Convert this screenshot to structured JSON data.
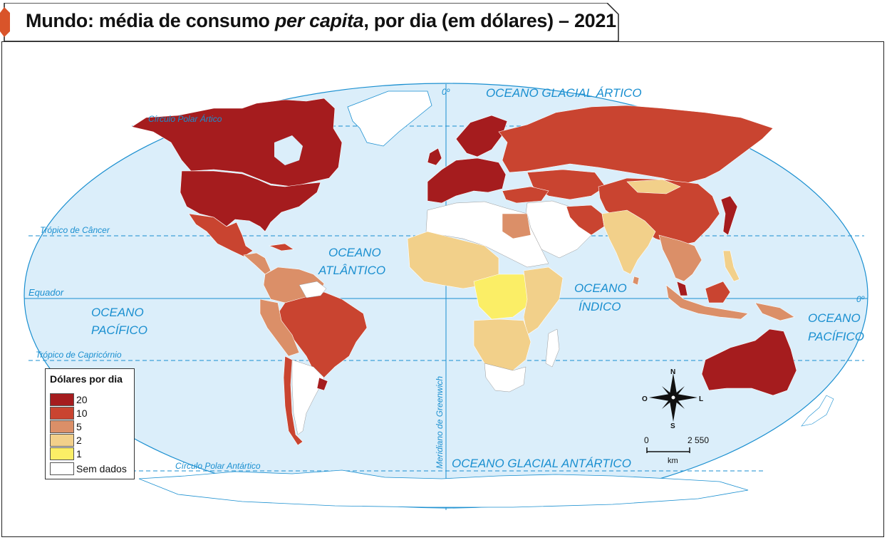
{
  "title": {
    "prefix": "Mundo: média de consumo ",
    "italic": "per capita",
    "suffix": ", por dia (em dólares) – 2021"
  },
  "colors": {
    "ocean": "#dbeefa",
    "line": "#1a8fd0",
    "accent": "#d9542a",
    "level_20": "#a51c1e",
    "level_10": "#c94430",
    "level_5": "#db8f68",
    "level_2": "#f2d08a",
    "level_1": "#fbee66",
    "no_data": "#ffffff"
  },
  "ocean_labels": {
    "arctic": "OCEANO GLACIAL ÁRTICO",
    "atlantic_1": "OCEANO",
    "atlantic_2": "ATLÂNTICO",
    "pacific_w_1": "OCEANO",
    "pacific_w_2": "PACÍFICO",
    "indian_1": "OCEANO",
    "indian_2": "ÍNDICO",
    "pacific_e_1": "OCEANO",
    "pacific_e_2": "PACÍFICO",
    "antarctic": "OCEANO GLACIAL ANTÁRTICO"
  },
  "line_labels": {
    "arctic_circle": "Círculo Polar Ártico",
    "cancer": "Trópico de Câncer",
    "equator": "Equador",
    "capricorn": "Trópico de Capricórnio",
    "antarctic_circle": "Círculo Polar Antártico",
    "greenwich": "Meridiano de Greenwich",
    "zero_top": "0º",
    "zero_right": "0º"
  },
  "legend": {
    "title": "Dólares por dia",
    "items": [
      {
        "label": "20",
        "level": "level_20"
      },
      {
        "label": "10",
        "level": "level_10"
      },
      {
        "label": "5",
        "level": "level_5"
      },
      {
        "label": "2",
        "level": "level_2"
      },
      {
        "label": "1",
        "level": "level_1"
      },
      {
        "label": "Sem dados",
        "level": "no_data"
      }
    ]
  },
  "compass": {
    "n": "N",
    "s": "S",
    "e": "L",
    "w": "O"
  },
  "scale": {
    "start": "0",
    "end": "2 550",
    "unit": "km"
  }
}
